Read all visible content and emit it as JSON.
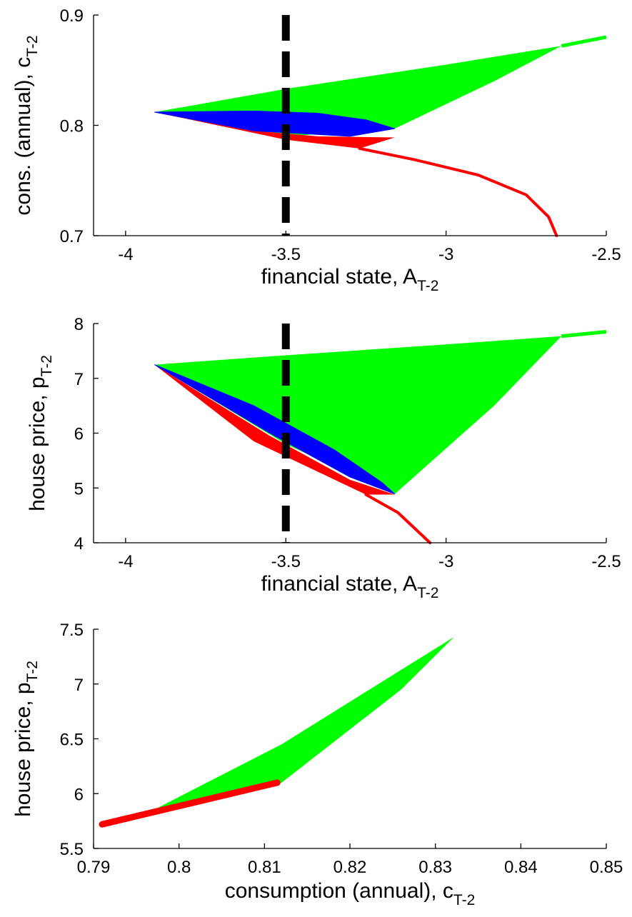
{
  "colors": {
    "green": "#00ff00",
    "blue": "#0000ff",
    "red": "#ff0000",
    "dashed_line": "#000000"
  },
  "chart_data": [
    {
      "type": "area",
      "xlabel": "financial state, A",
      "xlabel_sub": "T-2",
      "ylabel": "cons. (annual), c",
      "ylabel_sub": "T-2",
      "xlim": [
        -4.1,
        -2.5
      ],
      "ylim": [
        0.7,
        0.9
      ],
      "xticks": [
        -4,
        -3.5,
        -3,
        -2.5
      ],
      "xtick_labels": [
        "-4",
        "-3.5",
        "-3",
        "-2.5"
      ],
      "yticks": [
        0.7,
        0.8,
        0.9
      ],
      "ytick_labels": [
        "0.7",
        "0.8",
        "0.9"
      ],
      "vline": 3.5,
      "vline_x": -3.5,
      "green_region": [
        [
          -3.91,
          0.812
        ],
        [
          -3.5,
          0.833
        ],
        [
          -3.0,
          0.855
        ],
        [
          -2.64,
          0.872
        ],
        [
          -2.85,
          0.84
        ],
        [
          -3.16,
          0.797
        ],
        [
          -3.5,
          0.79
        ],
        [
          -3.91,
          0.812
        ]
      ],
      "green_line": [
        [
          -2.64,
          0.872
        ],
        [
          -2.5,
          0.88
        ]
      ],
      "blue_region": [
        [
          -3.91,
          0.812
        ],
        [
          -3.6,
          0.813
        ],
        [
          -3.4,
          0.811
        ],
        [
          -3.25,
          0.805
        ],
        [
          -3.16,
          0.797
        ],
        [
          -3.3,
          0.79
        ],
        [
          -3.6,
          0.795
        ],
        [
          -3.91,
          0.812
        ]
      ],
      "red_region": [
        [
          -3.91,
          0.812
        ],
        [
          -3.6,
          0.795
        ],
        [
          -3.4,
          0.79
        ],
        [
          -3.16,
          0.789
        ],
        [
          -3.27,
          0.779
        ],
        [
          -3.5,
          0.787
        ],
        [
          -3.91,
          0.812
        ]
      ],
      "red_line": [
        [
          -3.27,
          0.779
        ],
        [
          -3.1,
          0.769
        ],
        [
          -2.9,
          0.755
        ],
        [
          -2.75,
          0.737
        ],
        [
          -2.68,
          0.717
        ],
        [
          -2.655,
          0.7
        ]
      ]
    },
    {
      "type": "area",
      "xlabel": "financial state, A",
      "xlabel_sub": "T-2",
      "ylabel": "house price, p",
      "ylabel_sub": "T-2",
      "xlim": [
        -4.1,
        -2.5
      ],
      "ylim": [
        4,
        8
      ],
      "xticks": [
        -4,
        -3.5,
        -3,
        -2.5
      ],
      "xtick_labels": [
        "-4",
        "-3.5",
        "-3",
        "-2.5"
      ],
      "yticks": [
        4,
        5,
        6,
        7,
        8
      ],
      "ytick_labels": [
        "4",
        "5",
        "6",
        "7",
        "8"
      ],
      "vline_x": -3.5,
      "green_region": [
        [
          -3.91,
          7.25
        ],
        [
          -3.5,
          7.42
        ],
        [
          -3.0,
          7.62
        ],
        [
          -2.64,
          7.77
        ],
        [
          -2.85,
          6.5
        ],
        [
          -3.16,
          4.89
        ],
        [
          -3.5,
          5.8
        ],
        [
          -3.91,
          7.25
        ]
      ],
      "green_line": [
        [
          -2.64,
          7.77
        ],
        [
          -2.5,
          7.85
        ]
      ],
      "blue_region": [
        [
          -3.91,
          7.25
        ],
        [
          -3.6,
          6.5
        ],
        [
          -3.35,
          5.7
        ],
        [
          -3.2,
          5.1
        ],
        [
          -3.16,
          4.89
        ],
        [
          -3.3,
          5.2
        ],
        [
          -3.55,
          6.0
        ],
        [
          -3.91,
          7.25
        ]
      ],
      "red_region": [
        [
          -3.91,
          7.25
        ],
        [
          -3.55,
          5.95
        ],
        [
          -3.3,
          5.15
        ],
        [
          -3.16,
          4.88
        ],
        [
          -3.25,
          4.88
        ],
        [
          -3.6,
          5.85
        ],
        [
          -3.91,
          7.25
        ]
      ],
      "red_line": [
        [
          -3.25,
          4.88
        ],
        [
          -3.15,
          4.55
        ],
        [
          -3.05,
          4.0
        ]
      ]
    },
    {
      "type": "area",
      "xlabel": "consumption (annual), c",
      "xlabel_sub": "T-2",
      "ylabel": "house price, p",
      "ylabel_sub": "T-2",
      "xlim": [
        0.79,
        0.85
      ],
      "ylim": [
        5.5,
        7.5
      ],
      "xticks": [
        0.79,
        0.8,
        0.81,
        0.82,
        0.83,
        0.84,
        0.85
      ],
      "xtick_labels": [
        "0.79",
        "0.8",
        "0.81",
        "0.82",
        "0.83",
        "0.84",
        "0.85"
      ],
      "yticks": [
        5.5,
        6,
        6.5,
        7,
        7.5
      ],
      "ytick_labels": [
        "5.5",
        "6",
        "6.5",
        "7",
        "7.5"
      ],
      "green_region": [
        [
          0.797,
          5.85
        ],
        [
          0.812,
          6.45
        ],
        [
          0.8322,
          7.43
        ],
        [
          0.826,
          6.95
        ],
        [
          0.812,
          6.1
        ],
        [
          0.797,
          5.85
        ]
      ],
      "red_line": [
        [
          0.791,
          5.72
        ],
        [
          0.8115,
          6.1
        ]
      ]
    }
  ]
}
